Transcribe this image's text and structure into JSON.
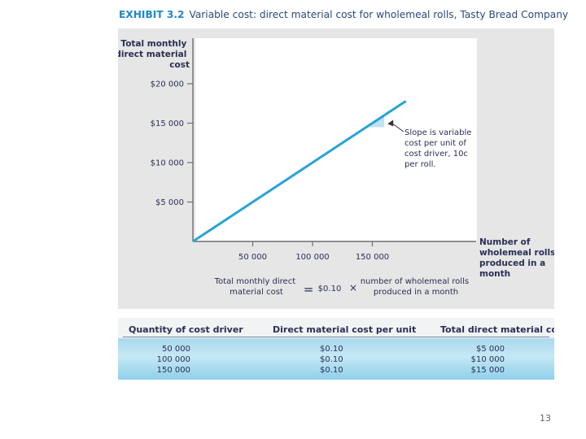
{
  "exhibit": {
    "label": "EXHIBIT 3.2",
    "title": "Variable cost: direct material cost for wholemeal rolls, Tasty Bread Company"
  },
  "chart_data": {
    "type": "line",
    "title": "Variable cost: direct material cost for wholemeal rolls, Tasty Bread Company",
    "ylabel": [
      "Total monthly",
      "direct material",
      "cost"
    ],
    "xlabel": [
      "Number of",
      "wholemeal rolls",
      "produced in a",
      "month"
    ],
    "yticks": [
      {
        "value": 20000,
        "label": "$20 000"
      },
      {
        "value": 15000,
        "label": "$15 000"
      },
      {
        "value": 10000,
        "label": "$10 000"
      },
      {
        "value": 5000,
        "label": "$5 000"
      }
    ],
    "xticks": [
      {
        "value": 50000,
        "label": "50 000"
      },
      {
        "value": 100000,
        "label": "100 000"
      },
      {
        "value": 150000,
        "label": "150 000"
      }
    ],
    "xlim": [
      0,
      195000
    ],
    "ylim": [
      0,
      22000
    ],
    "series": [
      {
        "name": "Total direct material cost",
        "color": "#29a3d6",
        "x": [
          0,
          178000
        ],
        "y": [
          0,
          17800
        ]
      }
    ],
    "annotation": {
      "lines": [
        "Slope is variable",
        "cost per unit of",
        "cost driver, 10c",
        "per roll."
      ],
      "at_x": 145000,
      "run": 15000
    },
    "equation": {
      "lhs": [
        "Total monthly direct",
        "material cost"
      ],
      "eq": "=",
      "rate": "$0.10",
      "times": "×",
      "rhs": [
        "number of wholemeal rolls",
        "produced in a month"
      ]
    }
  },
  "table": {
    "headers": [
      "Quantity of cost driver",
      "Direct material cost per unit",
      "Total direct material cost"
    ],
    "rows": [
      [
        "50 000",
        "$0.10",
        "$5 000"
      ],
      [
        "100 000",
        "$0.10",
        "$10 000"
      ],
      [
        "150 000",
        "$0.10",
        "$15 000"
      ]
    ]
  },
  "page_number": "13"
}
